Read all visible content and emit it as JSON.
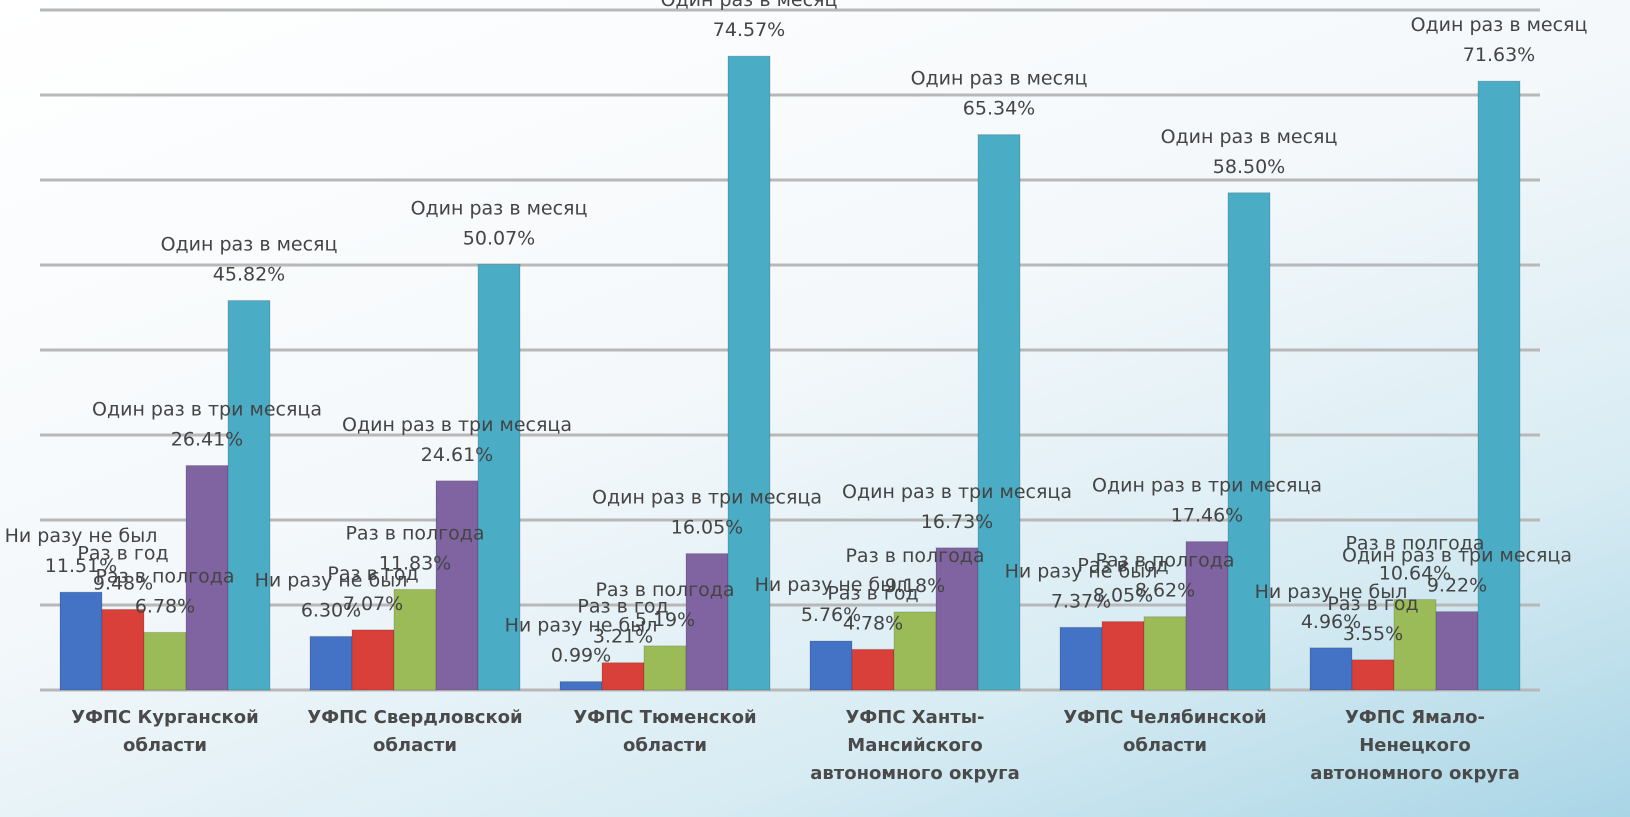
{
  "chart_data": {
    "type": "bar",
    "categories": [
      "УФПС Курганской области",
      "УФПС Свердловской области",
      "УФПС Тюменской области",
      "УФПС Ханты-Мансийского автономного округа",
      "УФПС Челябинской области",
      "УФПС Ямало-Ненецкого автономного округа"
    ],
    "series": [
      {
        "name": "Ни разу не был",
        "color": "#4472c4",
        "values": [
          11.51,
          6.3,
          0.99,
          5.76,
          7.37,
          4.96
        ],
        "value_labels": [
          "11.51%",
          "6.30%",
          "0.99%",
          "5.76%",
          "7.37%",
          "4.96%"
        ]
      },
      {
        "name": "Раз в год",
        "color": "#d9403a",
        "values": [
          9.48,
          7.07,
          3.21,
          4.78,
          8.05,
          3.55
        ],
        "value_labels": [
          "9.48%",
          "7.07%",
          "3.21%",
          "4.78%",
          "8.05%",
          "3.55%"
        ]
      },
      {
        "name": "Раз в полгода",
        "color": "#9bbb59",
        "values": [
          6.78,
          11.83,
          5.19,
          9.18,
          8.62,
          10.64
        ],
        "value_labels": [
          "6.78%",
          "11.83%",
          "5.19%",
          "9.18%",
          "8.62%",
          "10.64%"
        ]
      },
      {
        "name": "Один раз в три месяца",
        "color": "#8064a2",
        "values": [
          26.41,
          24.61,
          16.05,
          16.73,
          17.46,
          9.22
        ],
        "value_labels": [
          "26.41%",
          "24.61%",
          "16.05%",
          "16.73%",
          "17.46%",
          "9.22%"
        ]
      },
      {
        "name": "Один раз в месяц",
        "color": "#4bacc6",
        "values": [
          45.82,
          50.07,
          74.57,
          65.34,
          58.5,
          71.63
        ],
        "value_labels": [
          "45.82%",
          "50.07%",
          "74.57%",
          "65.34%",
          "58.50%",
          "71.63%"
        ]
      }
    ],
    "ylim": [
      0,
      80
    ],
    "yticks": [
      0,
      10,
      20,
      30,
      40,
      50,
      60,
      70,
      80
    ],
    "grid": true
  }
}
